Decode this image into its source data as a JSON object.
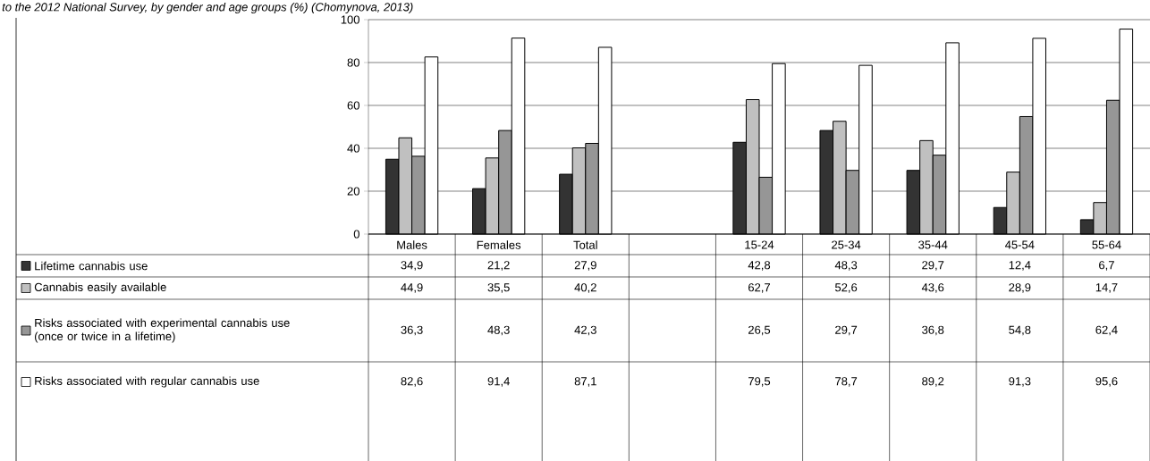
{
  "chart_data": {
    "type": "bar",
    "title": "to the 2012 National Survey, by gender and age groups (%) (Chomynova, 2013)",
    "categories": [
      "Males",
      "Females",
      "Total",
      null,
      "15-24",
      "25-34",
      "35-44",
      "45-54",
      "55-64"
    ],
    "series": [
      {
        "name": "Lifetime cannabis use",
        "color": "#333333",
        "values": [
          34.9,
          21.2,
          27.9,
          null,
          42.8,
          48.3,
          29.7,
          12.4,
          6.7
        ],
        "value_labels": [
          "34,9",
          "21,2",
          "27,9",
          null,
          "42,8",
          "48,3",
          "29,7",
          "12,4",
          "6,7"
        ]
      },
      {
        "name": "Cannabis easily available",
        "color": "#c0c0c0",
        "values": [
          44.9,
          35.5,
          40.2,
          null,
          62.7,
          52.6,
          43.6,
          28.9,
          14.7
        ],
        "value_labels": [
          "44,9",
          "35,5",
          "40,2",
          null,
          "62,7",
          "52,6",
          "43,6",
          "28,9",
          "14,7"
        ]
      },
      {
        "name": "Risks associated with experimental cannabis use (once or twice in a lifetime)",
        "color": "#969696",
        "values": [
          36.3,
          48.3,
          42.3,
          null,
          26.5,
          29.7,
          36.8,
          54.8,
          62.4
        ],
        "value_labels": [
          "36,3",
          "48,3",
          "42,3",
          null,
          "26,5",
          "29,7",
          "36,8",
          "54,8",
          "62,4"
        ]
      },
      {
        "name": "Risks associated with regular cannabis use",
        "color": "#ffffff",
        "values": [
          82.6,
          91.4,
          87.1,
          null,
          79.5,
          78.7,
          89.2,
          91.3,
          95.6
        ],
        "value_labels": [
          "82,6",
          "91,4",
          "87,1",
          null,
          "79,5",
          "78,7",
          "89,2",
          "91,3",
          "95,6"
        ]
      }
    ],
    "ylim": [
      0,
      100
    ],
    "yticks": [
      0,
      20,
      40,
      60,
      80,
      100
    ],
    "grid": "y",
    "legend": "bottom"
  }
}
